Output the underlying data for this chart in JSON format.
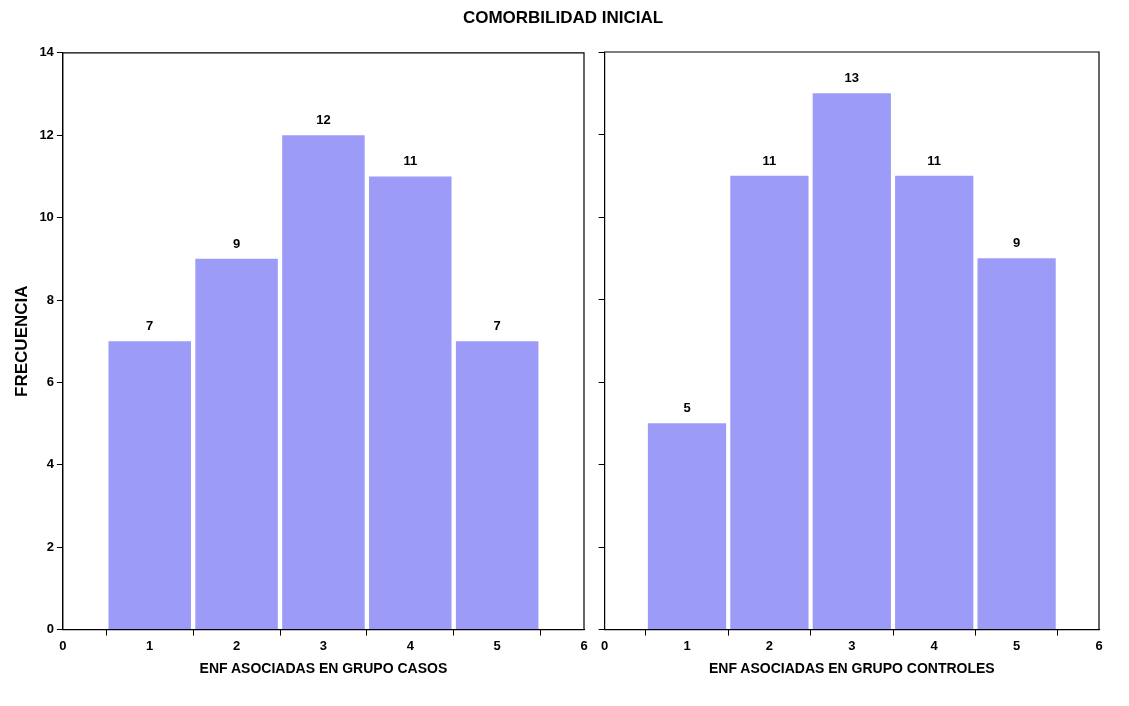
{
  "chart_data": [
    {
      "type": "histogram",
      "title": "COMORBILIDAD INICIAL",
      "xlabel": "ENF ASOCIADAS EN GRUPO CASOS",
      "ylabel": "FRECUENCIA",
      "bins": [
        0.5,
        1.5,
        2.5,
        3.5,
        4.5,
        5.5
      ],
      "values": [
        7,
        9,
        12,
        11,
        7
      ],
      "color": "#9c9cf8",
      "xlim": [
        0,
        6
      ],
      "xticks": [
        0,
        1,
        2,
        3,
        4,
        5,
        6
      ],
      "ylim": [
        0,
        14
      ],
      "yticks": [
        0,
        2,
        4,
        6,
        8,
        10,
        12,
        14
      ],
      "data_labels": true,
      "grid": false,
      "legend": false
    },
    {
      "type": "histogram",
      "xlabel": "ENF ASOCIADAS EN GRUPO CONTROLES",
      "bins": [
        0.5,
        1.5,
        2.5,
        3.5,
        4.5,
        5.5
      ],
      "values": [
        5,
        11,
        13,
        11,
        9
      ],
      "color": "#9c9cf8",
      "xlim": [
        0,
        6
      ],
      "xticks": [
        0,
        1,
        2,
        3,
        4,
        5,
        6
      ],
      "ylim": [
        0,
        14
      ],
      "yticks": [
        0,
        2,
        4,
        6,
        8,
        10,
        12,
        14
      ],
      "data_labels": true,
      "grid": false,
      "legend": false,
      "tick_labels": "x"
    }
  ]
}
